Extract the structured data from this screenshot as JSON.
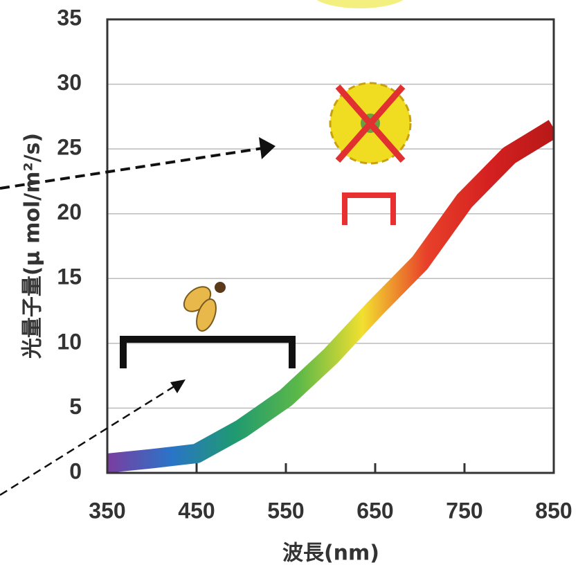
{
  "chart_data": {
    "type": "line",
    "x_label": "波長(nm)",
    "y_label": "光量子量(μ mol/m²/s)",
    "x": [
      350,
      400,
      450,
      500,
      550,
      600,
      650,
      700,
      750,
      800,
      850
    ],
    "series": [
      {
        "values": [
          0.75,
          1.1,
          1.5,
          3.4,
          5.8,
          9.0,
          12.7,
          16.2,
          21,
          24.5,
          26.6
        ],
        "colors": [
          "#7a3da0",
          "#2a74c8",
          "#1f9a70",
          "#5cb848",
          "#f2e030",
          "#e8402a",
          "#d42020",
          "#b81818"
        ]
      }
    ],
    "xlim": [
      350,
      850
    ],
    "ylim": [
      0,
      35
    ],
    "xticks": [
      350,
      450,
      550,
      650,
      750,
      850
    ],
    "yticks": [
      0,
      5,
      10,
      15,
      20,
      25,
      30,
      35
    ],
    "grid": true
  }
}
